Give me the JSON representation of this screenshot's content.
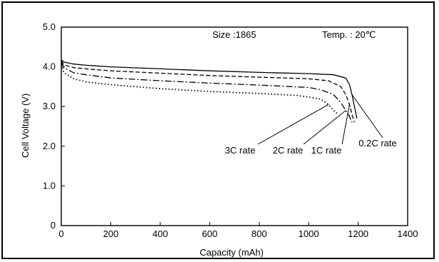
{
  "chart_data": {
    "type": "line",
    "title": "",
    "xlabel": "Capacity (mAh)",
    "ylabel": "Cell Voltage (V)",
    "xlim": [
      0,
      1400
    ],
    "ylim": [
      0,
      5.0
    ],
    "x_ticks": [
      "0",
      "200",
      "400",
      "600",
      "800",
      "1000",
      "1200",
      "1400"
    ],
    "y_ticks": [
      "0",
      "1.0",
      "2.0",
      "3.0",
      "4.0",
      "5.0"
    ],
    "grid": false,
    "annotations": [
      "Size :1865",
      "Temp. : 20℃"
    ],
    "series": [
      {
        "name": "0.2C rate",
        "style": "solid",
        "x": [
          0,
          10,
          50,
          100,
          200,
          400,
          600,
          800,
          1000,
          1100,
          1150,
          1165,
          1175,
          1185,
          1195
        ],
        "y": [
          4.18,
          4.12,
          4.07,
          4.04,
          4.0,
          3.95,
          3.9,
          3.86,
          3.83,
          3.8,
          3.72,
          3.55,
          3.3,
          3.0,
          2.7
        ]
      },
      {
        "name": "1C rate",
        "style": "dashed",
        "x": [
          0,
          10,
          50,
          100,
          200,
          400,
          600,
          800,
          1000,
          1080,
          1130,
          1150,
          1165,
          1175,
          1185
        ],
        "y": [
          4.15,
          4.05,
          3.98,
          3.95,
          3.9,
          3.84,
          3.78,
          3.74,
          3.7,
          3.65,
          3.5,
          3.3,
          3.05,
          2.8,
          2.6
        ]
      },
      {
        "name": "2C rate",
        "style": "dashdot",
        "x": [
          0,
          10,
          50,
          100,
          200,
          400,
          600,
          800,
          1000,
          1050,
          1100,
          1130,
          1150,
          1165,
          1175
        ],
        "y": [
          4.12,
          3.98,
          3.85,
          3.8,
          3.72,
          3.65,
          3.59,
          3.54,
          3.48,
          3.42,
          3.3,
          3.1,
          2.9,
          2.75,
          2.6
        ]
      },
      {
        "name": "3C rate",
        "style": "dotted",
        "x": [
          0,
          10,
          50,
          100,
          200,
          400,
          600,
          800,
          950,
          1000,
          1050,
          1080,
          1100,
          1120
        ],
        "y": [
          4.05,
          3.85,
          3.7,
          3.62,
          3.55,
          3.45,
          3.38,
          3.33,
          3.28,
          3.24,
          3.18,
          3.05,
          2.9,
          2.8
        ]
      }
    ]
  }
}
